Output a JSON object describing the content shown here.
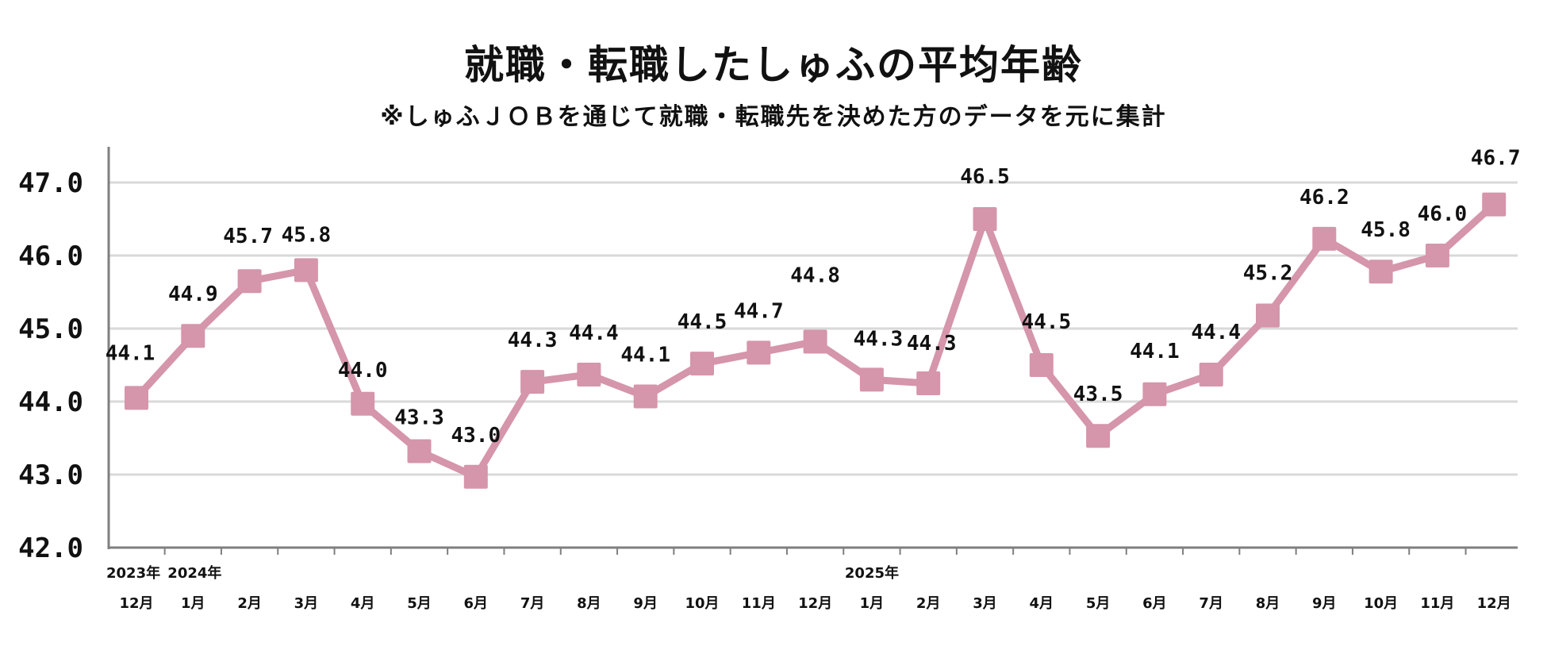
{
  "header": {
    "title": "就職・転職したしゅふの平均年齢",
    "subtitle": "※しゅふＪＯＢを通じて就職・転職先を決めた方のデータを元に集計"
  },
  "chart_data": {
    "type": "line",
    "categories": [
      "12月",
      "1月",
      "2月",
      "3月",
      "4月",
      "5月",
      "6月",
      "7月",
      "8月",
      "9月",
      "10月",
      "11月",
      "12月",
      "1月",
      "2月",
      "3月",
      "4月",
      "5月",
      "6月",
      "7月",
      "8月",
      "9月",
      "10月",
      "11月",
      "12月"
    ],
    "year_labels": [
      {
        "index": 0,
        "label": "2023年"
      },
      {
        "index": 1,
        "label": "2024年"
      },
      {
        "index": 13,
        "label": "2025年"
      }
    ],
    "series": [
      {
        "values": [
          44.05,
          44.9,
          45.65,
          45.8,
          43.97,
          43.32,
          42.97,
          44.27,
          44.37,
          44.07,
          44.52,
          44.67,
          44.82,
          44.3,
          44.25,
          46.5,
          44.5,
          43.53,
          44.1,
          44.37,
          45.18,
          46.23,
          45.78,
          46.0,
          46.7
        ],
        "labels": [
          "44.1",
          "44.9",
          "45.7",
          "45.8",
          "44.0",
          "43.3",
          "43.0",
          "44.3",
          "44.4",
          "44.1",
          "44.5",
          "44.7",
          "44.8",
          "44.3",
          "44.3",
          "46.5",
          "44.5",
          "43.5",
          "44.1",
          "44.4",
          "45.2",
          "46.2",
          "45.8",
          "46.0",
          "46.7"
        ],
        "color": "#d595ab"
      }
    ],
    "ylim": [
      42.0,
      47.0
    ],
    "yticks": [
      "42.0",
      "43.0",
      "44.0",
      "45.0",
      "46.0",
      "47.0"
    ],
    "grid": true,
    "grid_color": "#d9d9d9",
    "axis_color": "#7f7f7f"
  }
}
